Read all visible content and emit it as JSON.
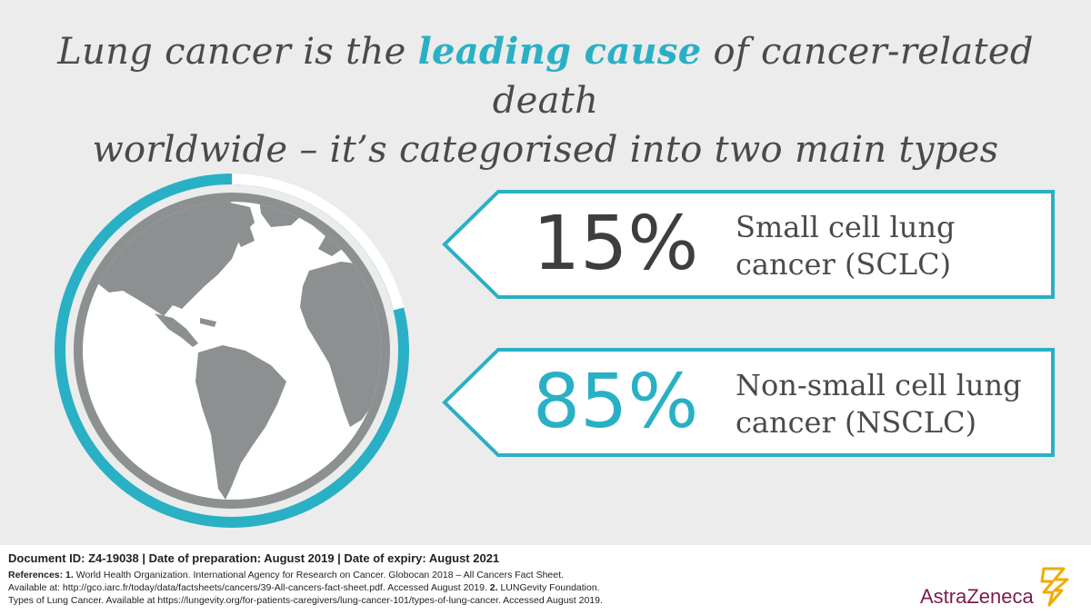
{
  "headline": {
    "part1": "Lung cancer is the ",
    "accent": "leading cause",
    "part2": " of cancer-related death",
    "line2": "worldwide –  it’s categorised into two main types"
  },
  "stats": [
    {
      "value": "15%",
      "label_line1": "Small cell lung",
      "label_line2": "cancer (SCLC)"
    },
    {
      "value": "85%",
      "label_line1": "Non-small cell lung",
      "label_line2": "cancer (NSCLC)"
    }
  ],
  "colors": {
    "accent": "#2ab0c5",
    "text": "#4a4a4a",
    "land": "#8c9091",
    "logo": "#7b1c4d",
    "logo_mark": "#f0ab00"
  },
  "footer": {
    "document_line": "Document ID: Z4-19038 | Date of preparation: August 2019 | Date of expiry: August 2021",
    "refs_label": "References:",
    "ref1_num": "1.",
    "ref1_a": "World Health Organization. International Agency for Research on Cancer. Globocan 2018 – All Cancers Fact Sheet.",
    "ref1_b": "Available at: http://gco.iarc.fr/today/data/factsheets/cancers/39-All-cancers-fact-sheet.pdf. Accessed August 2019.",
    "ref2_num": "2.",
    "ref2_a": "LUNGevity Foundation.",
    "ref2_b": "Types of Lung Cancer. Available at https://lungevity.org/for-patients-caregivers/lung-cancer-101/types-of-lung-cancer. Accessed August 2019."
  },
  "logo": {
    "name": "AstraZeneca"
  },
  "icons": {
    "globe": "globe-icon",
    "logo_mark": "astrazeneca-logo-mark"
  }
}
